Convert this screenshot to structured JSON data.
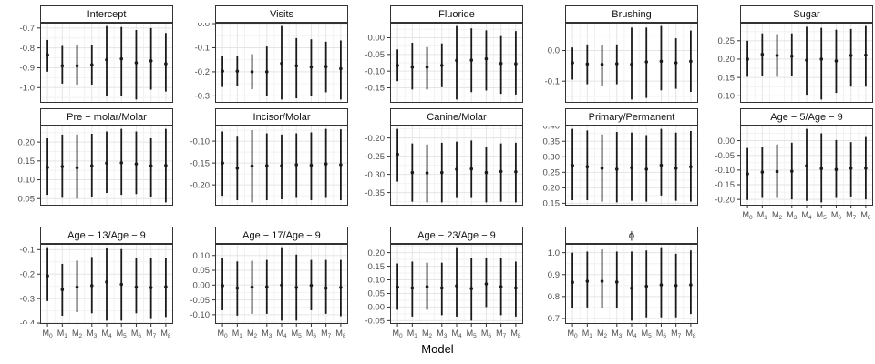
{
  "chart_data": {
    "type": "scatter",
    "subtype": "faceted-pointrange",
    "xlabel": "Model",
    "grid": true,
    "legend": "none",
    "categories": [
      "M0",
      "M1",
      "M2",
      "M3",
      "M4",
      "M5",
      "M6",
      "M7",
      "M8"
    ],
    "colors": {
      "point": "#1a1a1a",
      "grid_major": "#e5e5e5",
      "grid_minor": "#f2f2f2",
      "panel_border": "#333333",
      "tick_label": "#4d4d4d",
      "strip_fill": "#ffffff"
    },
    "facets": [
      {
        "title": "Intercept",
        "row": 1,
        "col": 1,
        "show_x_axis": false,
        "yticks": [
          "-0.7",
          "-0.8",
          "-0.9",
          "-1.0"
        ],
        "est": [
          -0.835,
          -0.89,
          -0.89,
          -0.885,
          -0.86,
          -0.855,
          -0.875,
          -0.865,
          -0.88
        ],
        "lo": [
          -0.92,
          -0.98,
          -0.985,
          -0.985,
          -1.04,
          -1.04,
          -1.06,
          -1.01,
          -1.02
        ],
        "hi": [
          -0.76,
          -0.79,
          -0.785,
          -0.785,
          -0.69,
          -0.695,
          -0.71,
          -0.7,
          -0.725
        ]
      },
      {
        "title": "Visits",
        "row": 1,
        "col": 2,
        "show_x_axis": false,
        "yticks": [
          "0.0",
          "-0.1",
          "-0.2",
          "-0.3"
        ],
        "est": [
          -0.197,
          -0.197,
          -0.2,
          -0.2,
          -0.165,
          -0.175,
          -0.18,
          -0.178,
          -0.187
        ],
        "lo": [
          -0.263,
          -0.26,
          -0.272,
          -0.3,
          -0.315,
          -0.31,
          -0.3,
          -0.285,
          -0.315
        ],
        "hi": [
          -0.135,
          -0.135,
          -0.127,
          -0.095,
          -0.01,
          -0.06,
          -0.065,
          -0.075,
          -0.07
        ]
      },
      {
        "title": "Fluoride",
        "row": 1,
        "col": 3,
        "show_x_axis": false,
        "yticks": [
          "0.00",
          "-0.05",
          "-0.10",
          "-0.15"
        ],
        "est": [
          -0.083,
          -0.088,
          -0.088,
          -0.083,
          -0.068,
          -0.067,
          -0.063,
          -0.077,
          -0.078
        ],
        "lo": [
          -0.13,
          -0.155,
          -0.155,
          -0.148,
          -0.185,
          -0.163,
          -0.158,
          -0.168,
          -0.17
        ],
        "hi": [
          -0.035,
          -0.015,
          -0.028,
          -0.017,
          0.035,
          0.028,
          0.022,
          0.005,
          0.02
        ]
      },
      {
        "title": "Brushing",
        "row": 1,
        "col": 4,
        "show_x_axis": false,
        "yticks": [
          "0.0",
          "-0.1"
        ],
        "est": [
          -0.04,
          -0.044,
          -0.045,
          -0.043,
          -0.045,
          -0.037,
          -0.035,
          -0.04,
          -0.035
        ],
        "lo": [
          -0.095,
          -0.11,
          -0.115,
          -0.11,
          -0.16,
          -0.155,
          -0.13,
          -0.125,
          -0.135
        ],
        "hi": [
          0.01,
          0.02,
          0.018,
          0.02,
          0.075,
          0.075,
          0.08,
          0.04,
          0.065
        ]
      },
      {
        "title": "Sugar",
        "row": 1,
        "col": 5,
        "show_x_axis": false,
        "yticks": [
          "0.25",
          "0.20",
          "0.15",
          "0.10"
        ],
        "est": [
          0.2,
          0.213,
          0.21,
          0.208,
          0.197,
          0.2,
          0.195,
          0.21,
          0.211
        ],
        "lo": [
          0.152,
          0.155,
          0.152,
          0.155,
          0.103,
          0.09,
          0.108,
          0.125,
          0.125
        ],
        "hi": [
          0.25,
          0.27,
          0.268,
          0.27,
          0.288,
          0.285,
          0.28,
          0.282,
          0.29
        ]
      },
      {
        "title": "Pre − molar/Molar",
        "row": 2,
        "col": 1,
        "show_x_axis": false,
        "yticks": [
          "0.20",
          "0.15",
          "0.10",
          "0.05"
        ],
        "est": [
          0.133,
          0.135,
          0.132,
          0.137,
          0.144,
          0.145,
          0.142,
          0.137,
          0.138
        ],
        "lo": [
          0.06,
          0.052,
          0.05,
          0.055,
          0.065,
          0.06,
          0.062,
          0.055,
          0.04
        ],
        "hi": [
          0.21,
          0.22,
          0.22,
          0.222,
          0.228,
          0.235,
          0.228,
          0.21,
          0.235
        ]
      },
      {
        "title": "Incisor/Molar",
        "row": 2,
        "col": 2,
        "show_x_axis": false,
        "yticks": [
          "-0.10",
          "-0.15",
          "-0.20"
        ],
        "est": [
          -0.15,
          -0.162,
          -0.157,
          -0.156,
          -0.156,
          -0.154,
          -0.155,
          -0.152,
          -0.154
        ],
        "lo": [
          -0.225,
          -0.235,
          -0.24,
          -0.235,
          -0.233,
          -0.23,
          -0.235,
          -0.23,
          -0.235
        ],
        "hi": [
          -0.078,
          -0.09,
          -0.075,
          -0.082,
          -0.085,
          -0.082,
          -0.08,
          -0.072,
          -0.073
        ]
      },
      {
        "title": "Canine/Molar",
        "row": 2,
        "col": 3,
        "show_x_axis": false,
        "yticks": [
          "-0.20",
          "-0.25",
          "-0.30",
          "-0.35"
        ],
        "est": [
          -0.245,
          -0.295,
          -0.296,
          -0.295,
          -0.286,
          -0.285,
          -0.295,
          -0.292,
          -0.293
        ],
        "lo": [
          -0.32,
          -0.375,
          -0.377,
          -0.377,
          -0.365,
          -0.365,
          -0.377,
          -0.375,
          -0.377
        ],
        "hi": [
          -0.175,
          -0.215,
          -0.218,
          -0.213,
          -0.21,
          -0.207,
          -0.225,
          -0.215,
          -0.213
        ]
      },
      {
        "title": "Primary/Permanent",
        "row": 2,
        "col": 4,
        "show_x_axis": false,
        "yticks": [
          "0.40",
          "0.35",
          "0.30",
          "0.25",
          "0.20",
          "0.15"
        ],
        "est": [
          0.272,
          0.268,
          0.263,
          0.26,
          0.265,
          0.26,
          0.273,
          0.263,
          0.268
        ],
        "lo": [
          0.16,
          0.16,
          0.155,
          0.153,
          0.158,
          0.155,
          0.175,
          0.158,
          0.155
        ],
        "hi": [
          0.39,
          0.385,
          0.372,
          0.38,
          0.378,
          0.37,
          0.39,
          0.378,
          0.383
        ]
      },
      {
        "title": "Age − 5/Age − 9",
        "row": 2,
        "col": 5,
        "show_x_axis": true,
        "yticks": [
          "0.00",
          "-0.05",
          "-0.10",
          "-0.15",
          "-0.20"
        ],
        "est": [
          -0.113,
          -0.107,
          -0.105,
          -0.104,
          -0.085,
          -0.095,
          -0.098,
          -0.094,
          -0.094
        ],
        "lo": [
          -0.202,
          -0.195,
          -0.195,
          -0.2,
          -0.205,
          -0.21,
          -0.195,
          -0.19,
          -0.2
        ],
        "hi": [
          -0.025,
          -0.022,
          -0.013,
          -0.007,
          0.04,
          0.025,
          0.002,
          -0.005,
          0.012
        ]
      },
      {
        "title": "Age − 13/Age − 9",
        "row": 3,
        "col": 1,
        "show_x_axis": true,
        "yticks": [
          "-0.1",
          "-0.2",
          "-0.3",
          "-0.4"
        ],
        "est": [
          -0.207,
          -0.263,
          -0.253,
          -0.247,
          -0.232,
          -0.242,
          -0.253,
          -0.255,
          -0.252
        ],
        "lo": [
          -0.31,
          -0.37,
          -0.355,
          -0.36,
          -0.39,
          -0.39,
          -0.36,
          -0.38,
          -0.375
        ],
        "hi": [
          -0.09,
          -0.158,
          -0.145,
          -0.13,
          -0.095,
          -0.098,
          -0.133,
          -0.135,
          -0.133
        ]
      },
      {
        "title": "Age − 17/Age − 9",
        "row": 3,
        "col": 2,
        "show_x_axis": true,
        "yticks": [
          "0.10",
          "0.05",
          "0.00",
          "-0.05",
          "-0.10"
        ],
        "est": [
          -0.002,
          -0.01,
          -0.007,
          -0.006,
          0.0,
          -0.008,
          -0.001,
          -0.01,
          -0.008
        ],
        "lo": [
          -0.085,
          -0.103,
          -0.097,
          -0.097,
          -0.12,
          -0.12,
          -0.085,
          -0.097,
          -0.105
        ],
        "hi": [
          0.09,
          0.08,
          0.082,
          0.085,
          0.128,
          0.103,
          0.085,
          0.085,
          0.085
        ]
      },
      {
        "title": "Age − 23/Age − 9",
        "row": 3,
        "col": 3,
        "show_x_axis": true,
        "yticks": [
          "0.20",
          "0.15",
          "0.10",
          "0.05",
          "0.00",
          "-0.05"
        ],
        "est": [
          0.073,
          0.07,
          0.075,
          0.07,
          0.078,
          0.068,
          0.085,
          0.075,
          0.07
        ],
        "lo": [
          -0.01,
          -0.035,
          -0.01,
          -0.03,
          -0.035,
          -0.05,
          0.0,
          -0.03,
          -0.035
        ],
        "hi": [
          0.16,
          0.167,
          0.163,
          0.163,
          0.22,
          0.18,
          0.18,
          0.18,
          0.167
        ]
      },
      {
        "title": "ϕ",
        "row": 3,
        "col": 4,
        "show_x_axis": true,
        "yticks": [
          "1.0",
          "0.9",
          "0.8",
          "0.7"
        ],
        "est": [
          0.865,
          0.87,
          0.87,
          0.866,
          0.838,
          0.847,
          0.853,
          0.85,
          0.853
        ],
        "lo": [
          0.748,
          0.75,
          0.748,
          0.748,
          0.69,
          0.705,
          0.705,
          0.705,
          0.72
        ],
        "hi": [
          1.0,
          1.005,
          1.015,
          1.005,
          1.005,
          1.01,
          1.025,
          0.995,
          1.01
        ]
      }
    ]
  }
}
